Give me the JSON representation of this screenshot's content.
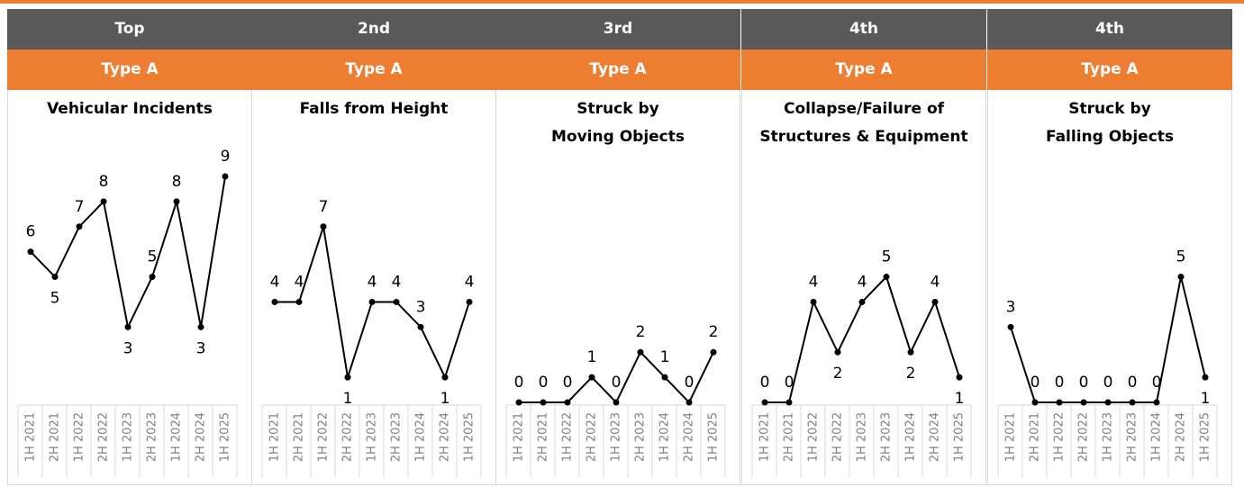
{
  "chart_data": [
    {
      "type": "line",
      "rank": "Top",
      "subtitle": "Type A",
      "title": "Vehicular Incidents",
      "categories": [
        "1H 2021",
        "2H 2021",
        "1H 2022",
        "2H 2022",
        "1H 2023",
        "2H 2023",
        "1H 2024",
        "2H 2024",
        "1H 2025"
      ],
      "values": [
        6,
        5,
        7,
        8,
        3,
        5,
        8,
        3,
        9
      ],
      "color": "#000000",
      "ylim": [
        0,
        9
      ]
    },
    {
      "type": "line",
      "rank": "2nd",
      "subtitle": "Type A",
      "title": "Falls from Height",
      "categories": [
        "1H 2021",
        "2H 2021",
        "1H 2022",
        "2H 2022",
        "1H 2023",
        "2H 2023",
        "1H 2024",
        "2H 2024",
        "1H 2025"
      ],
      "values": [
        4,
        4,
        7,
        1,
        4,
        4,
        3,
        1,
        4
      ],
      "color": "#000000",
      "ylim": [
        0,
        9
      ]
    },
    {
      "type": "line",
      "rank": "3rd",
      "subtitle": "Type A",
      "title": "Struck by\nMoving Objects",
      "categories": [
        "1H 2021",
        "2H 2021",
        "1H 2022",
        "2H 2022",
        "1H 2023",
        "2H 2023",
        "1H 2024",
        "2H 2024",
        "1H 2025"
      ],
      "values": [
        0,
        0,
        0,
        1,
        0,
        2,
        1,
        0,
        2
      ],
      "color": "#000000",
      "ylim": [
        0,
        9
      ]
    },
    {
      "type": "line",
      "rank": "4th",
      "subtitle": "Type A",
      "title": "Collapse/Failure of\nStructures & Equipment",
      "categories": [
        "1H 2021",
        "2H 2021",
        "1H 2022",
        "2H 2022",
        "1H 2023",
        "2H 2023",
        "1H 2024",
        "2H 2024",
        "1H 2025"
      ],
      "values": [
        0,
        0,
        4,
        2,
        4,
        5,
        2,
        4,
        1
      ],
      "color": "#000000",
      "ylim": [
        0,
        9
      ]
    },
    {
      "type": "line",
      "rank": "4th",
      "subtitle": "Type A",
      "title": "Struck by\nFalling Objects",
      "categories": [
        "1H 2021",
        "2H 2021",
        "1H 2022",
        "2H 2022",
        "1H 2023",
        "2H 2023",
        "1H 2024",
        "2H 2024",
        "1H 2025"
      ],
      "values": [
        3,
        0,
        0,
        0,
        0,
        0,
        0,
        5,
        1
      ],
      "color": "#000000",
      "ylim": [
        0,
        9
      ]
    }
  ]
}
